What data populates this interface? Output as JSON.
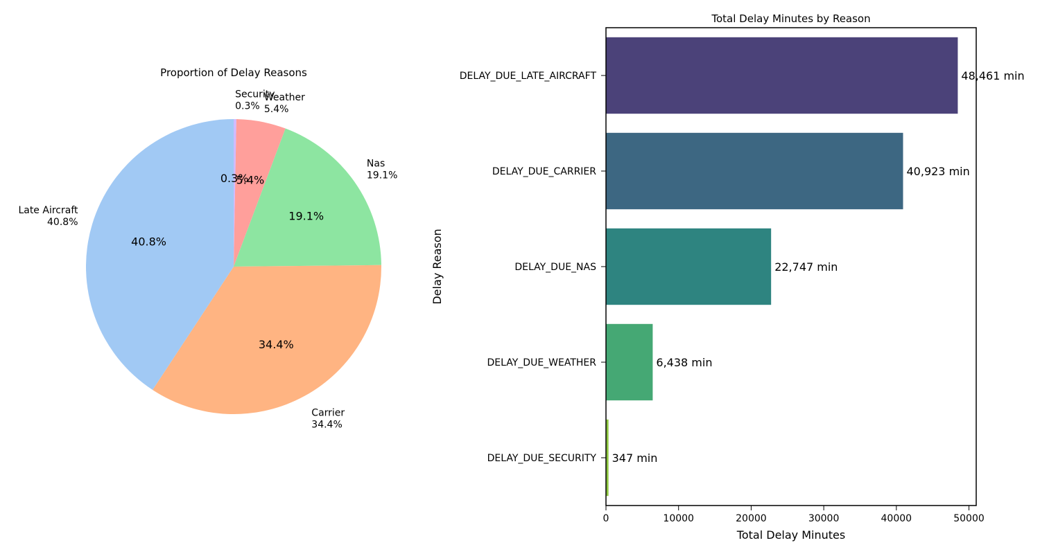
{
  "chart_data": [
    {
      "type": "pie",
      "title": "Proportion of Delay Reasons",
      "start_angle_deg": 90,
      "direction": "clockwise",
      "slices": [
        {
          "label": "Security",
          "percent_label": "0.3%",
          "value": 347,
          "color": "#d0bbff"
        },
        {
          "label": "Weather",
          "percent_label": "5.4%",
          "value": 6438,
          "color": "#ff9f9b"
        },
        {
          "label": "Nas",
          "percent_label": "19.1%",
          "value": 22747,
          "color": "#8de5a1"
        },
        {
          "label": "Carrier",
          "percent_label": "34.4%",
          "value": 40923,
          "color": "#ffb482"
        },
        {
          "label": "Late Aircraft",
          "percent_label": "40.8%",
          "value": 48461,
          "color": "#a1c9f4"
        }
      ]
    },
    {
      "type": "bar",
      "orientation": "horizontal",
      "title": "Total Delay Minutes by Reason",
      "xlabel": "Total Delay Minutes",
      "ylabel": "Delay Reason",
      "xlim": [
        0,
        51000
      ],
      "xticks": [
        0,
        10000,
        20000,
        30000,
        40000,
        50000
      ],
      "categories": [
        "DELAY_DUE_LATE_AIRCRAFT",
        "DELAY_DUE_CARRIER",
        "DELAY_DUE_NAS",
        "DELAY_DUE_WEATHER",
        "DELAY_DUE_SECURITY"
      ],
      "values": [
        48461,
        40923,
        22747,
        6438,
        347
      ],
      "data_labels": [
        "48,461 min",
        "40,923 min",
        "22,747 min",
        "6,438 min",
        "347 min"
      ],
      "colors": [
        "#4b4279",
        "#3d6782",
        "#2e8480",
        "#45a874",
        "#8dc63f"
      ]
    }
  ]
}
